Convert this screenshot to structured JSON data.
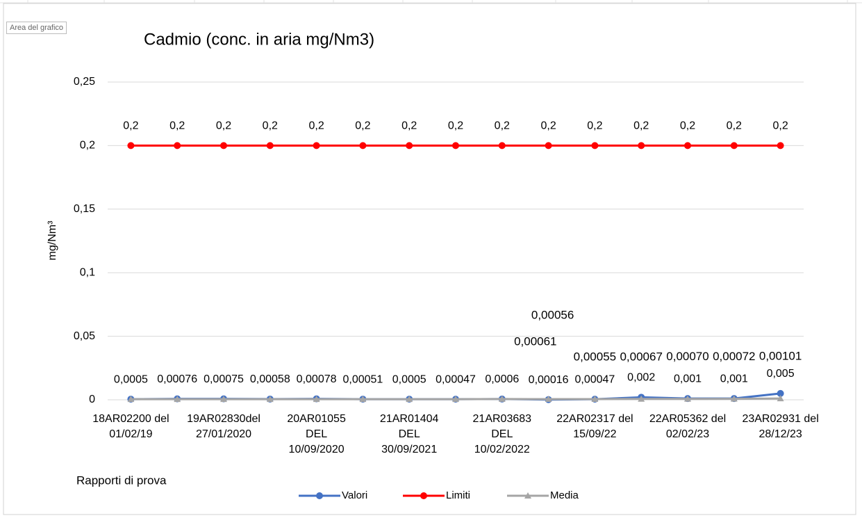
{
  "ui": {
    "tooltip": "Area del grafico"
  },
  "chart_data": {
    "type": "line",
    "title": "Cadmio (conc. in aria mg/Nm3)",
    "y_label": "mg/Nm³",
    "x_label": "Rapporti di prova",
    "categories": [
      "18AR02200 del\n01/02/19",
      null,
      "19AR02830del\n27/01/2020",
      null,
      "20AR01055\nDEL\n10/09/2020",
      null,
      "21AR01404\nDEL\n30/09/2021",
      null,
      "21AR03683\nDEL\n10/02/2022",
      null,
      "22AR02317 del\n15/09/22",
      null,
      "22AR05362 del\n02/02/23",
      null,
      "23AR02931 del\n28/12/23"
    ],
    "ylim": [
      0,
      0.25
    ],
    "yticks": [
      0,
      {
        "value": 0.05,
        "label": "0,05"
      },
      {
        "value": 0.1,
        "label": "0,1"
      },
      {
        "value": 0.15,
        "label": "0,15"
      },
      {
        "value": 0.2,
        "label": "0,2"
      },
      {
        "value": 0.25,
        "label": "0,25"
      }
    ],
    "grid": true,
    "legend": "bottom",
    "series": [
      {
        "name": "Valori",
        "color": "#4472c4",
        "marker": "circle",
        "values": [
          0.0005,
          0.00076,
          0.00075,
          0.00058,
          0.00078,
          0.00051,
          0.0005,
          0.00047,
          0.0006,
          0.00016,
          0.00047,
          0.002,
          0.001,
          0.001,
          0.005
        ],
        "value_labels": [
          "0,0005",
          "0,00076",
          "0,00075",
          "0,00058",
          "0,00078",
          "0,00051",
          "0,0005",
          "0,00047",
          "0,0006",
          "0,00016",
          "0,00047",
          "0,002",
          "0,001",
          "0,001",
          "0,005"
        ]
      },
      {
        "name": "Limiti",
        "color": "#ff0000",
        "marker": "circle",
        "values": [
          0.2,
          0.2,
          0.2,
          0.2,
          0.2,
          0.2,
          0.2,
          0.2,
          0.2,
          0.2,
          0.2,
          0.2,
          0.2,
          0.2,
          0.2
        ],
        "value_labels": [
          "0,2",
          "0,2",
          "0,2",
          "0,2",
          "0,2",
          "0,2",
          "0,2",
          "0,2",
          "0,2",
          "0,2",
          "0,2",
          "0,2",
          "0,2",
          "0,2",
          "0,2"
        ]
      },
      {
        "name": "Media",
        "color": "#a5a5a5",
        "marker": "triangle",
        "values": [
          0.0005,
          0.0005,
          0.0005,
          0.0005,
          0.0005,
          0.0005,
          0.0005,
          0.0005,
          0.00061,
          0.00056,
          0.00055,
          0.00067,
          0.0007,
          0.00072,
          0.00101
        ],
        "value_labels": [
          null,
          null,
          null,
          null,
          null,
          null,
          null,
          null,
          "0,00061",
          "0,00056",
          "0,00055",
          "0,00067",
          "0,00070",
          "0,00072",
          "0,00101"
        ]
      }
    ]
  }
}
